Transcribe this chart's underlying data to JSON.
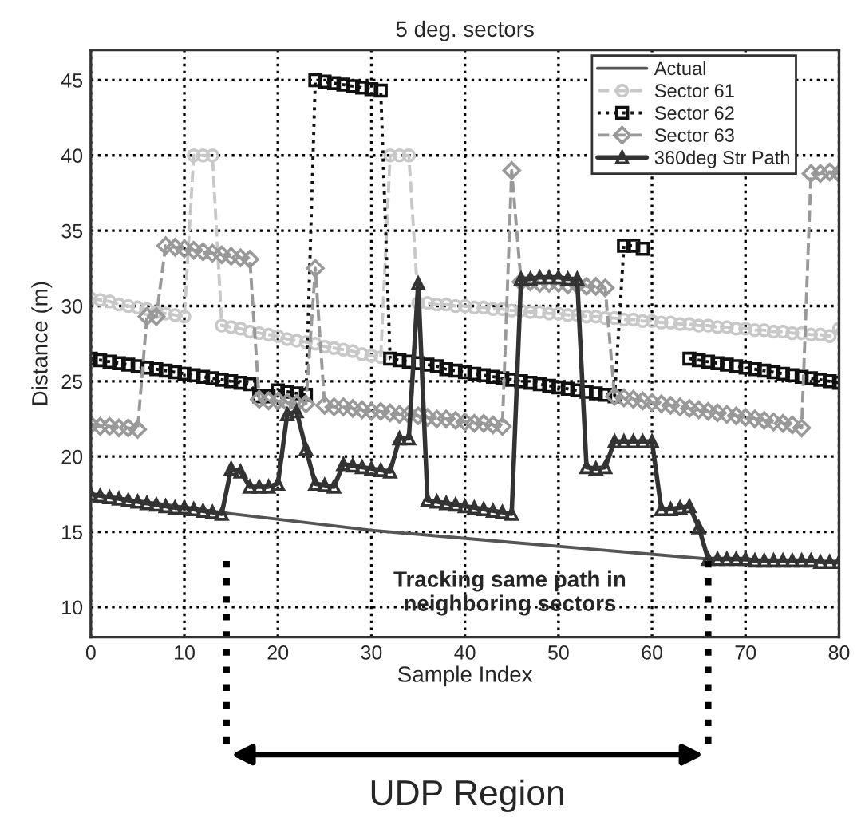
{
  "chart_data": {
    "type": "line",
    "title": "5 deg. sectors",
    "xlabel": "Sample Index",
    "ylabel": "Distance (m)",
    "x": [
      0,
      1,
      2,
      3,
      4,
      5,
      6,
      7,
      8,
      9,
      10,
      11,
      12,
      13,
      14,
      15,
      16,
      17,
      18,
      19,
      20,
      21,
      22,
      23,
      24,
      25,
      26,
      27,
      28,
      29,
      30,
      31,
      32,
      33,
      34,
      35,
      36,
      37,
      38,
      39,
      40,
      41,
      42,
      43,
      44,
      45,
      46,
      47,
      48,
      49,
      50,
      51,
      52,
      53,
      54,
      55,
      56,
      57,
      58,
      59,
      60,
      61,
      62,
      63,
      64,
      65,
      66,
      67,
      68,
      69,
      70,
      71,
      72,
      73,
      74,
      75,
      76,
      77,
      78,
      79,
      80
    ],
    "xlim": [
      0,
      80
    ],
    "xticks": [
      0,
      10,
      20,
      30,
      40,
      50,
      60,
      70,
      80
    ],
    "ylim": [
      8,
      47
    ],
    "yticks": [
      10,
      15,
      20,
      25,
      30,
      35,
      40,
      45
    ],
    "grid": true,
    "legend": "top right",
    "series": [
      {
        "name": "Actual",
        "color": "#555555",
        "marker": "none",
        "line_style": "solid",
        "x": [
          0,
          15,
          30,
          45,
          66,
          80
        ],
        "values": [
          17.5,
          16.2,
          15.1,
          14.3,
          13.2,
          13.0
        ]
      },
      {
        "name": "Sector 61",
        "color": "#c8c8c8",
        "marker": "circle",
        "line_style": "dashed",
        "values": [
          30.5,
          30.4,
          30.3,
          30.1,
          30.0,
          29.9,
          29.8,
          29.6,
          29.5,
          29.4,
          29.3,
          40,
          40,
          40,
          28.7,
          28.6,
          28.5,
          28.3,
          28.2,
          28.1,
          28.0,
          27.8,
          27.7,
          27.6,
          27.5,
          27.3,
          27.2,
          27.1,
          27.0,
          26.8,
          26.7,
          26.6,
          40,
          40,
          40,
          30.2,
          30.2,
          30.1,
          30.1,
          30.0,
          30.0,
          29.9,
          29.9,
          29.8,
          29.8,
          29.7,
          29.7,
          29.6,
          29.6,
          29.5,
          29.5,
          29.4,
          29.4,
          29.3,
          29.3,
          29.2,
          29.2,
          29.1,
          29.1,
          29.0,
          29.0,
          28.9,
          28.9,
          28.8,
          28.8,
          28.7,
          28.7,
          28.6,
          28.6,
          28.5,
          28.5,
          28.4,
          28.4,
          28.3,
          28.3,
          28.2,
          28.2,
          28.1,
          28.1,
          28.0,
          28.5
        ]
      },
      {
        "name": "Sector 62",
        "color": "#111111",
        "marker": "square",
        "line_style": "dotted",
        "values": [
          26.5,
          26.4,
          26.3,
          26.2,
          26.1,
          26.0,
          25.9,
          25.8,
          25.7,
          25.6,
          25.5,
          25.4,
          25.3,
          25.2,
          25.1,
          25.0,
          24.9,
          24.8,
          24.0,
          24.0,
          24.4,
          24.3,
          24.2,
          24.1,
          45.0,
          44.9,
          44.8,
          44.7,
          44.6,
          44.5,
          44.4,
          44.3,
          26.5,
          26.4,
          26.3,
          26.2,
          26.1,
          26.0,
          25.8,
          25.7,
          25.6,
          25.5,
          25.4,
          25.3,
          25.2,
          25.1,
          25.0,
          24.9,
          24.8,
          24.7,
          24.6,
          24.5,
          24.4,
          24.3,
          24.2,
          24.1,
          24.0,
          34,
          34,
          33.8,
          null,
          null,
          null,
          null,
          26.5,
          26.4,
          26.3,
          26.2,
          26.1,
          26.0,
          25.9,
          25.8,
          25.7,
          25.6,
          25.5,
          25.4,
          25.3,
          25.2,
          25.1,
          25.0,
          24.9
        ]
      },
      {
        "name": "Sector 63",
        "color": "#999999",
        "marker": "diamond",
        "line_style": "dashed",
        "values": [
          22.1,
          22.0,
          22.0,
          21.9,
          21.9,
          21.8,
          29.3,
          29.3,
          34.0,
          33.9,
          33.8,
          33.7,
          33.6,
          33.5,
          33.4,
          33.3,
          33.2,
          33.1,
          23.8,
          23.7,
          23.7,
          23.6,
          23.5,
          23.5,
          32.5,
          23.4,
          23.3,
          23.3,
          23.2,
          23.1,
          23.0,
          23.0,
          22.9,
          22.8,
          22.8,
          22.7,
          22.6,
          22.5,
          22.5,
          22.4,
          22.3,
          22.2,
          22.2,
          22.1,
          22.0,
          39.0,
          31.6,
          31.6,
          31.5,
          31.5,
          31.5,
          31.4,
          31.4,
          31.3,
          31.3,
          31.2,
          24.0,
          23.9,
          23.8,
          23.7,
          23.6,
          23.5,
          23.4,
          23.3,
          23.2,
          23.1,
          23.0,
          22.9,
          22.8,
          22.7,
          22.6,
          22.5,
          22.4,
          22.3,
          22.2,
          22.1,
          21.9,
          38.8,
          38.8,
          38.9,
          38.8
        ]
      },
      {
        "name": "360deg Str Path",
        "color": "#333333",
        "marker": "triangle",
        "line_style": "solid",
        "values": [
          17.5,
          17.4,
          17.3,
          17.2,
          17.1,
          17.0,
          16.9,
          16.8,
          16.7,
          16.6,
          16.6,
          16.5,
          16.4,
          16.3,
          16.2,
          19.2,
          19.0,
          18.0,
          18.0,
          18.0,
          18.2,
          22.8,
          23.0,
          20.5,
          18.2,
          18.1,
          18.0,
          19.5,
          19.4,
          19.3,
          19.2,
          19.1,
          19.0,
          21.2,
          21.2,
          31.5,
          17.1,
          17.0,
          16.9,
          16.8,
          16.7,
          16.6,
          16.5,
          16.4,
          16.3,
          16.2,
          31.8,
          31.8,
          31.9,
          31.9,
          31.9,
          31.8,
          31.8,
          19.3,
          19.2,
          19.3,
          21.0,
          21.0,
          21.0,
          21.0,
          21.0,
          16.5,
          16.5,
          16.6,
          16.7,
          15.3,
          13.2,
          13.2,
          13.2,
          13.2,
          13.2,
          13.1,
          13.1,
          13.1,
          13.1,
          13.1,
          13.1,
          13.1,
          13.0,
          13.0,
          13.0
        ]
      }
    ],
    "annotations": [
      "Tracking same path in\nneighboring sectors",
      "UDP Region"
    ],
    "ref_lines": [
      {
        "axis": "x",
        "value": 14.5,
        "line_style": "dotted"
      },
      {
        "axis": "x",
        "value": 66,
        "line_style": "dotted"
      }
    ]
  }
}
